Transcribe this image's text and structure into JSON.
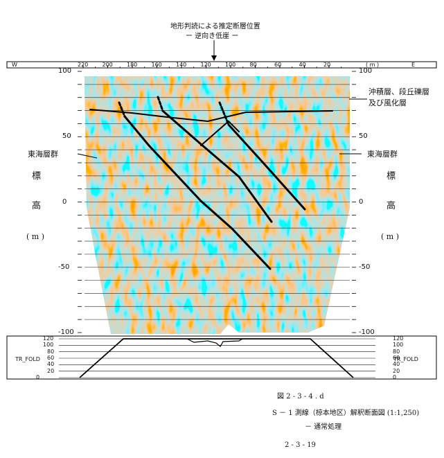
{
  "top_annotation": {
    "line1": "地形判読による推定断層位置",
    "line2": "ー 逆向き低崖 ー"
  },
  "x_axis": {
    "left_dir": "W",
    "right_dir": "E",
    "unit": "( m )",
    "ticks": [
      "220",
      "200",
      "180",
      "160",
      "140",
      "120",
      "100",
      "80",
      "60",
      "40",
      "20"
    ]
  },
  "y_axis": {
    "ticks": [
      "100",
      "50",
      "0",
      "-50",
      "-100"
    ],
    "label_chars": [
      "標",
      "高",
      "( m )"
    ]
  },
  "annotations": {
    "top_right_1": "沖積層、段丘礫層",
    "top_right_2": "及び風化層",
    "left_group": "東海層群",
    "right_group": "東海層群"
  },
  "fold_panel": {
    "left_label": "TR_FOLD",
    "right_label": "TR_FOLD",
    "ticks": [
      "120",
      "100",
      "80",
      "60",
      "40",
      "20",
      "0"
    ]
  },
  "caption": {
    "figure_no": "図 2 - 3 - 4 . d",
    "title": "S － 1 測線（椋本地区）解釈断面図 (1:1,250)",
    "subtitle": "－ 通常処理",
    "page": "2 - 3 - 19"
  },
  "chart_data": {
    "type": "seismic-section",
    "x_label": "( m )",
    "x_ticks": [
      220,
      200,
      180,
      160,
      140,
      120,
      100,
      80,
      60,
      40,
      20
    ],
    "y_ticks": [
      100,
      50,
      0,
      -50,
      -100
    ],
    "ylim": [
      -100,
      100
    ],
    "grid": true,
    "colors": {
      "red": "#d9281e",
      "blue": "#2e55b8",
      "yellow": "#f0c83a",
      "line": "#000000"
    }
  }
}
